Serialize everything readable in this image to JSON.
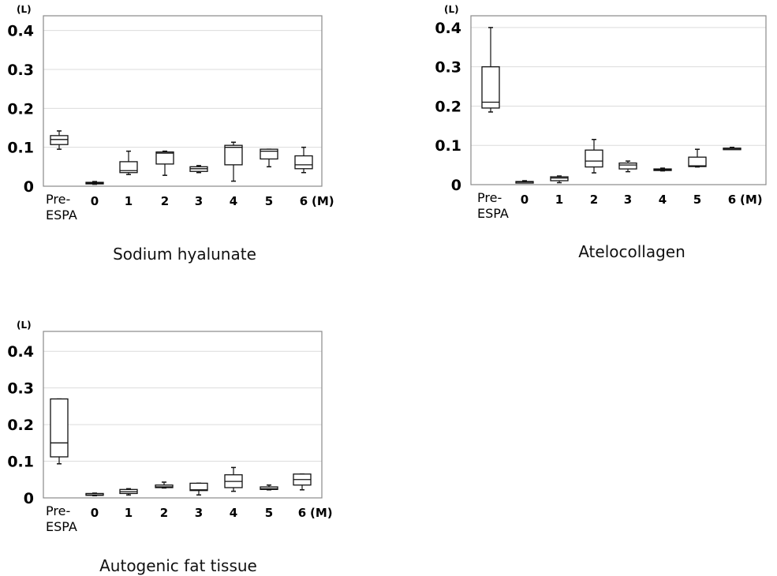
{
  "chart_data": [
    {
      "type": "box",
      "title": "Sodium hyalunate",
      "ylabel": "(L)",
      "xlabel": "(M)",
      "ylim": [
        0,
        0.45
      ],
      "yticks": [
        "0",
        "0.1",
        "0.2",
        "0.3",
        "0.4"
      ],
      "categories": [
        "Pre-\nESPA",
        "0",
        "1",
        "2",
        "3",
        "4",
        "5",
        "6"
      ],
      "grid": true,
      "boxes": [
        {
          "min": 0.095,
          "q1": 0.107,
          "median": 0.12,
          "q3": 0.13,
          "max": 0.142
        },
        {
          "min": 0.005,
          "q1": 0.006,
          "median": 0.008,
          "q3": 0.01,
          "max": 0.012
        },
        {
          "min": 0.03,
          "q1": 0.035,
          "median": 0.04,
          "q3": 0.063,
          "max": 0.09
        },
        {
          "min": 0.028,
          "q1": 0.057,
          "median": 0.085,
          "q3": 0.088,
          "max": 0.09
        },
        {
          "min": 0.035,
          "q1": 0.038,
          "median": 0.045,
          "q3": 0.05,
          "max": 0.053
        },
        {
          "min": 0.013,
          "q1": 0.055,
          "median": 0.1,
          "q3": 0.105,
          "max": 0.113
        },
        {
          "min": 0.05,
          "q1": 0.07,
          "median": 0.09,
          "q3": 0.095,
          "max": 0.095
        },
        {
          "min": 0.035,
          "q1": 0.045,
          "median": 0.055,
          "q3": 0.078,
          "max": 0.1
        }
      ]
    },
    {
      "type": "box",
      "title": "Atelocollagen",
      "ylabel": "(L)",
      "xlabel": "(M)",
      "ylim": [
        0,
        0.45
      ],
      "yticks": [
        "0",
        "0.1",
        "0.2",
        "0.3",
        "0.4"
      ],
      "categories": [
        "Pre-\nESPA",
        "0",
        "1",
        "2",
        "3",
        "4",
        "5",
        "6"
      ],
      "grid": true,
      "boxes": [
        {
          "min": 0.185,
          "q1": 0.195,
          "median": 0.21,
          "q3": 0.3,
          "max": 0.4
        },
        {
          "min": 0.005,
          "q1": 0.006,
          "median": 0.007,
          "q3": 0.008,
          "max": 0.01
        },
        {
          "min": 0.005,
          "q1": 0.01,
          "median": 0.017,
          "q3": 0.02,
          "max": 0.022
        },
        {
          "min": 0.03,
          "q1": 0.045,
          "median": 0.06,
          "q3": 0.088,
          "max": 0.115
        },
        {
          "min": 0.033,
          "q1": 0.04,
          "median": 0.05,
          "q3": 0.055,
          "max": 0.06
        },
        {
          "min": 0.035,
          "q1": 0.037,
          "median": 0.038,
          "q3": 0.04,
          "max": 0.042
        },
        {
          "min": 0.045,
          "q1": 0.046,
          "median": 0.048,
          "q3": 0.07,
          "max": 0.09
        },
        {
          "min": 0.09,
          "q1": 0.091,
          "median": 0.092,
          "q3": 0.093,
          "max": 0.095
        }
      ]
    },
    {
      "type": "box",
      "title": "Autogenic fat tissue",
      "ylabel": "(L)",
      "xlabel": "(M)",
      "ylim": [
        0,
        0.45
      ],
      "yticks": [
        "0",
        "0.1",
        "0.2",
        "0.3",
        "0.4"
      ],
      "categories": [
        "Pre-\nESPA",
        "0",
        "1",
        "2",
        "3",
        "4",
        "5",
        "6"
      ],
      "grid": true,
      "boxes": [
        {
          "min": 0.093,
          "q1": 0.112,
          "median": 0.15,
          "q3": 0.27,
          "max": 0.27
        },
        {
          "min": 0.006,
          "q1": 0.007,
          "median": 0.008,
          "q3": 0.012,
          "max": 0.013
        },
        {
          "min": 0.008,
          "q1": 0.012,
          "median": 0.017,
          "q3": 0.023,
          "max": 0.025
        },
        {
          "min": 0.027,
          "q1": 0.028,
          "median": 0.03,
          "q3": 0.035,
          "max": 0.043
        },
        {
          "min": 0.008,
          "q1": 0.02,
          "median": 0.022,
          "q3": 0.04,
          "max": 0.04
        },
        {
          "min": 0.018,
          "q1": 0.028,
          "median": 0.045,
          "q3": 0.063,
          "max": 0.083
        },
        {
          "min": 0.022,
          "q1": 0.023,
          "median": 0.025,
          "q3": 0.03,
          "max": 0.035
        },
        {
          "min": 0.022,
          "q1": 0.035,
          "median": 0.05,
          "q3": 0.065,
          "max": 0.065
        }
      ]
    }
  ]
}
